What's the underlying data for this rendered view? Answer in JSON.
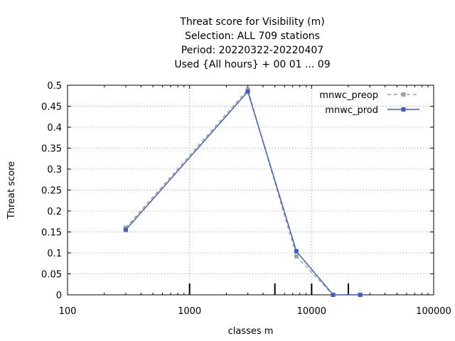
{
  "chart_data": {
    "type": "line",
    "title_lines": [
      "Threat score  for Visibility (m)",
      "Selection: ALL    709 stations",
      "Period: 20220322-20220407",
      "Used {All hours} + 00 01 ... 09"
    ],
    "xlabel": "classes m",
    "ylabel": "Threat score",
    "x_scale": "log",
    "xlim": [
      100,
      100000
    ],
    "ylim": [
      0,
      0.5
    ],
    "x_ticks": [
      100,
      1000,
      10000,
      100000
    ],
    "x_tick_labels": [
      "100",
      "1000",
      "10000",
      "100000"
    ],
    "y_ticks": [
      0,
      0.05,
      0.1,
      0.15,
      0.2,
      0.25,
      0.3,
      0.35,
      0.4,
      0.45,
      0.5
    ],
    "y_tick_labels": [
      "0",
      "0.05",
      "0.1",
      "0.15",
      "0.2",
      "0.25",
      "0.3",
      "0.35",
      "0.4",
      "0.45",
      "0.5"
    ],
    "grid": true,
    "legend_position": "top-right",
    "class_markers": [
      1000,
      5000,
      10000,
      20000
    ],
    "series": [
      {
        "name": "mnwc_preop",
        "color": "#a0a0a0",
        "dash": true,
        "x": [
          300,
          3000,
          7500,
          15000,
          25000
        ],
        "y": [
          0.16,
          0.49,
          0.092,
          0.0,
          0.0
        ]
      },
      {
        "name": "mnwc_prod",
        "color": "#3a5fcd",
        "dash": false,
        "x": [
          300,
          3000,
          7500,
          15000,
          25000
        ],
        "y": [
          0.155,
          0.485,
          0.104,
          0.0,
          0.0
        ]
      }
    ]
  }
}
